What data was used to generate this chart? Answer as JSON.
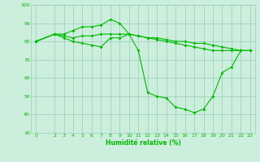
{
  "xlabel": "Humidité relative (%)",
  "background_color": "#cceedd",
  "grid_color": "#99ccbb",
  "line_color": "#00bb00",
  "xlim": [
    -0.5,
    23.5
  ],
  "ylim": [
    30,
    100
  ],
  "yticks": [
    30,
    40,
    50,
    60,
    70,
    80,
    90,
    100
  ],
  "xticks": [
    0,
    2,
    3,
    4,
    5,
    6,
    7,
    8,
    9,
    10,
    11,
    12,
    13,
    14,
    15,
    16,
    17,
    18,
    19,
    20,
    21,
    22,
    23
  ],
  "series": [
    {
      "x": [
        0,
        2,
        3,
        4,
        5,
        6,
        7,
        8,
        9,
        10,
        11,
        12,
        13,
        14,
        15,
        16,
        17,
        18,
        19,
        20,
        21,
        22,
        23
      ],
      "y": [
        80,
        84,
        84,
        86,
        88,
        88,
        89,
        92,
        90,
        84,
        75,
        52,
        50,
        49,
        44,
        43,
        41,
        43,
        50,
        63,
        66,
        75,
        75
      ]
    },
    {
      "x": [
        0,
        2,
        3,
        4,
        5,
        6,
        7,
        8,
        9,
        10,
        11,
        12,
        13,
        14,
        15,
        16,
        17,
        18,
        19,
        20,
        21,
        22,
        23
      ],
      "y": [
        80,
        84,
        83,
        82,
        83,
        83,
        84,
        84,
        84,
        84,
        83,
        82,
        81,
        80,
        79,
        78,
        77,
        76,
        75,
        75,
        75,
        75,
        75
      ]
    },
    {
      "x": [
        0,
        2,
        3,
        4,
        5,
        6,
        7,
        8,
        9,
        10,
        11,
        12,
        13,
        14,
        15,
        16,
        17,
        18,
        19,
        20,
        21,
        22,
        23
      ],
      "y": [
        80,
        84,
        82,
        80,
        79,
        78,
        77,
        82,
        82,
        84,
        83,
        82,
        82,
        81,
        80,
        80,
        79,
        79,
        78,
        77,
        76,
        75,
        75
      ]
    }
  ]
}
